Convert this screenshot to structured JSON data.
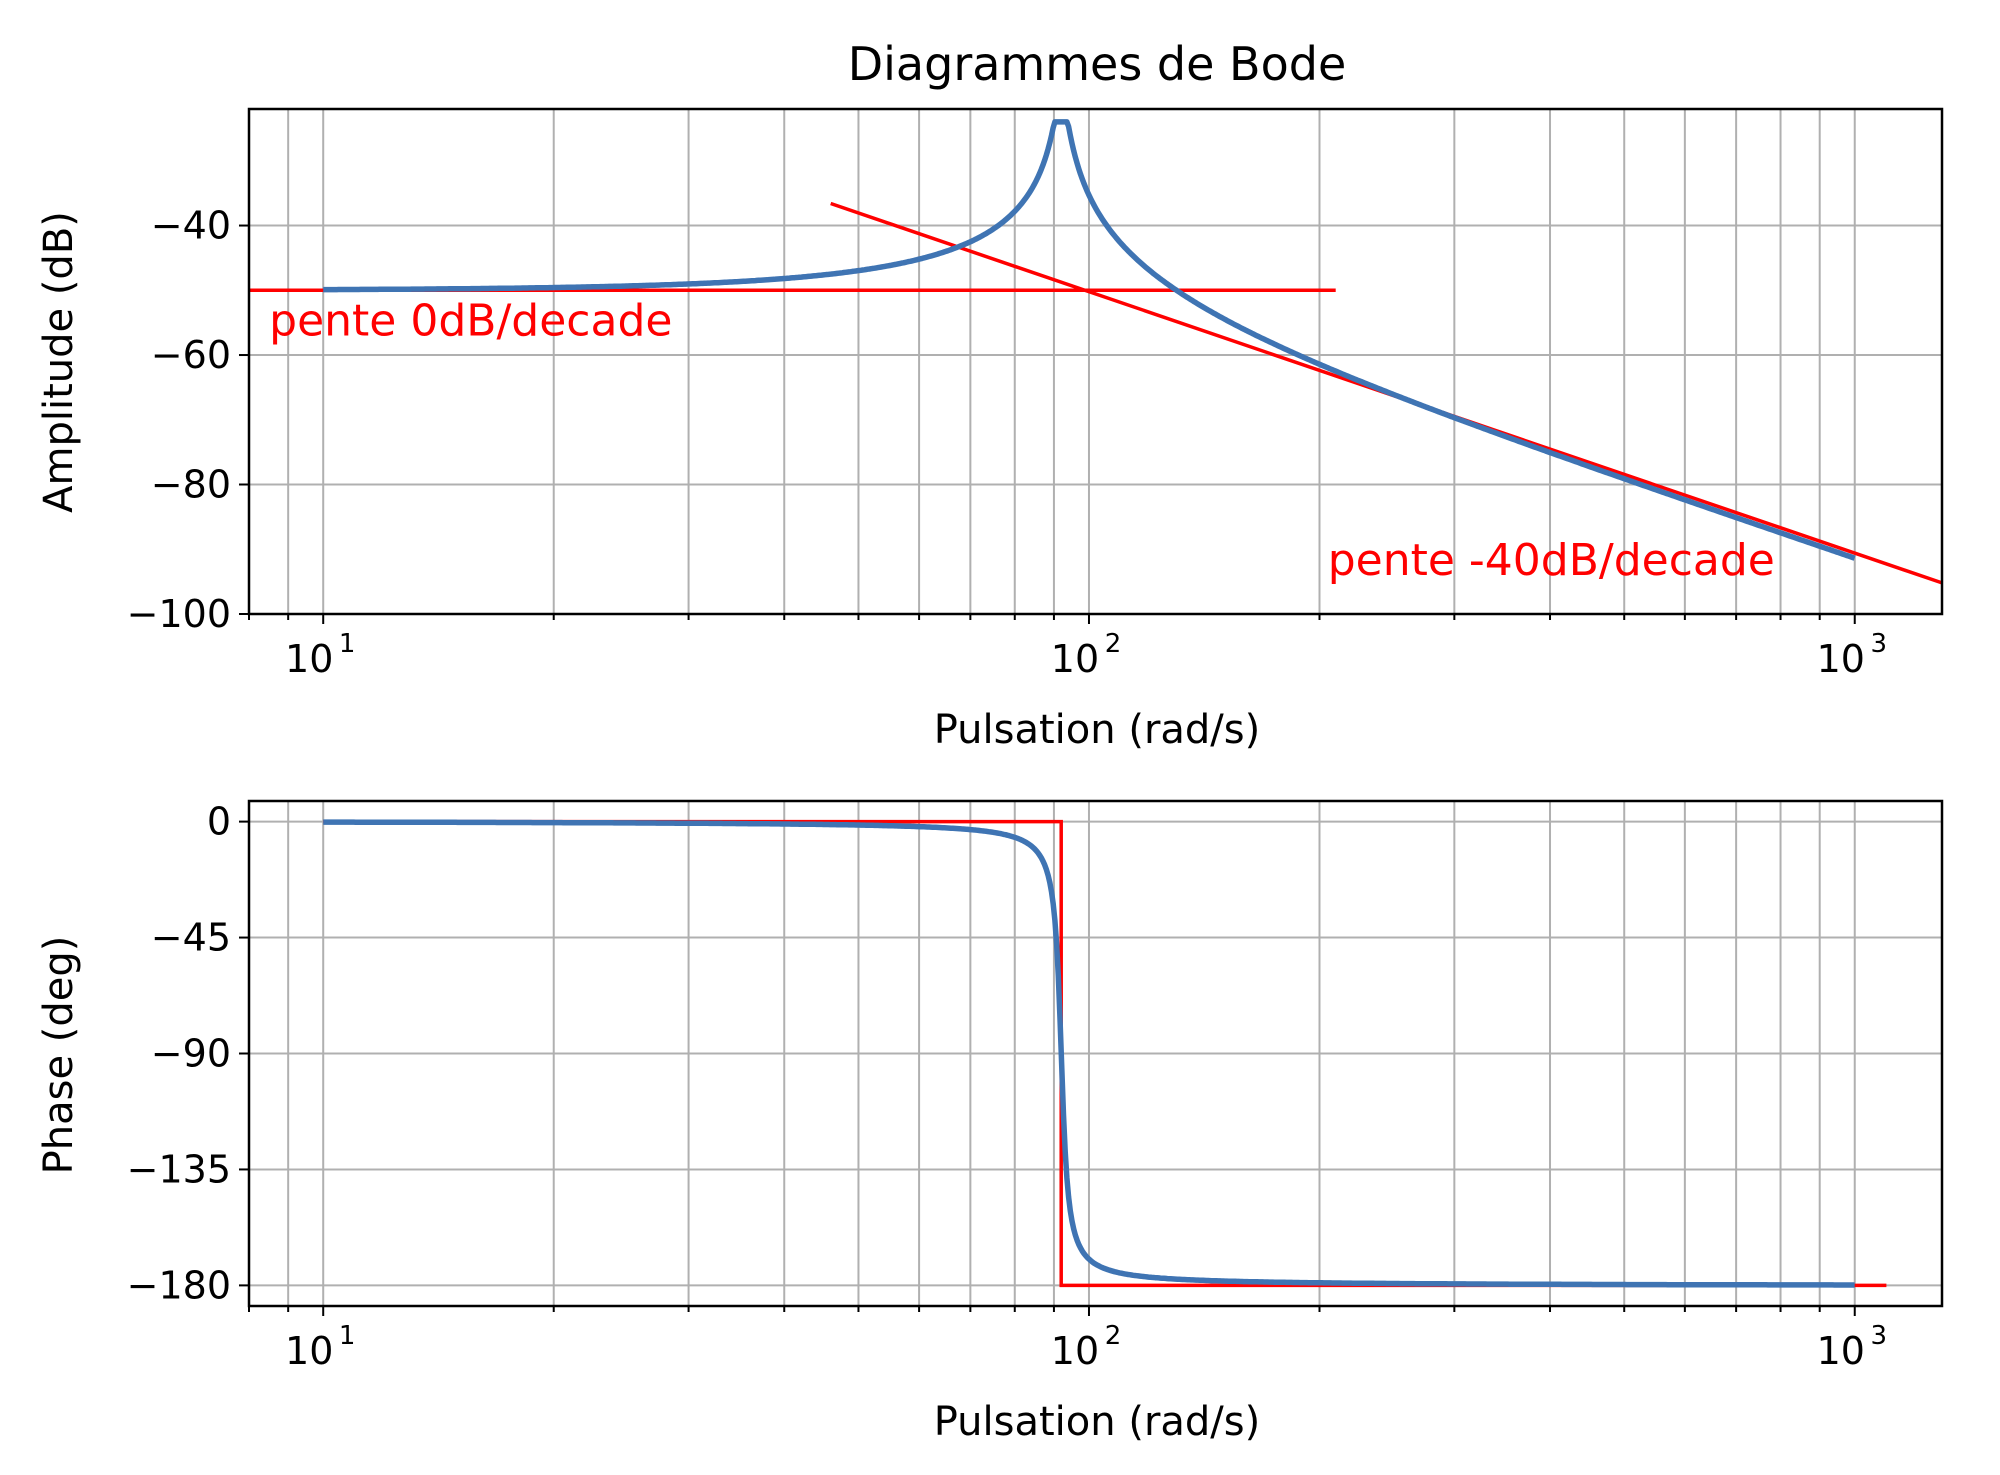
{
  "chart_data": [
    {
      "type": "line",
      "title": "Diagrammes de Bode",
      "xlabel": "Pulsation (rad/s)",
      "ylabel": "Amplitude (dB)",
      "xscale": "log",
      "xlim": [
        8,
        1300
      ],
      "ylim": [
        -100,
        -22
      ],
      "xticks": [
        {
          "base": "10",
          "exp": "1",
          "value": 10
        },
        {
          "base": "10",
          "exp": "2",
          "value": 100
        },
        {
          "base": "10",
          "exp": "3",
          "value": 1000
        }
      ],
      "yticks": [
        {
          "label": "−40",
          "value": -40
        },
        {
          "label": "−60",
          "value": -60
        },
        {
          "label": "−80",
          "value": -80
        },
        {
          "label": "−100",
          "value": -100
        }
      ],
      "grid": true,
      "series": [
        {
          "color": "#3f74b3",
          "model": {
            "gain_db": -50,
            "omega_n": 92,
            "zeta": 0.015
          },
          "x_range": [
            10,
            1000
          ]
        }
      ],
      "asymptotes": [
        {
          "color": "#ff0000",
          "x": [
            8,
            210
          ],
          "y": [
            -50,
            -50
          ]
        },
        {
          "color": "#ff0000",
          "x": [
            46,
            1300
          ],
          "y": [
            -36.6,
            -95.2
          ]
        }
      ],
      "annotations": [
        {
          "text": "pente 0dB/decade",
          "x": 8.5,
          "y": -57,
          "color": "#ff0000"
        },
        {
          "text": "pente -40dB/decade",
          "x": 205,
          "y": -94,
          "color": "#ff0000"
        }
      ]
    },
    {
      "type": "line",
      "xlabel": "Pulsation (rad/s)",
      "ylabel": "Phase (deg)",
      "xscale": "log",
      "xlim": [
        8,
        1300
      ],
      "ylim": [
        -188,
        8
      ],
      "xticks": [
        {
          "base": "10",
          "exp": "1",
          "value": 10
        },
        {
          "base": "10",
          "exp": "2",
          "value": 100
        },
        {
          "base": "10",
          "exp": "3",
          "value": 1000
        }
      ],
      "yticks": [
        {
          "label": "0",
          "value": 0
        },
        {
          "label": "−45",
          "value": -45
        },
        {
          "label": "−90",
          "value": -90
        },
        {
          "label": "−135",
          "value": -135
        },
        {
          "label": "−180",
          "value": -180
        }
      ],
      "grid": true,
      "series": [
        {
          "color": "#3f74b3",
          "model": {
            "omega_n": 92,
            "zeta": 0.015
          },
          "x_range": [
            10,
            1000
          ]
        }
      ],
      "asymptotes": [
        {
          "color": "#ff0000",
          "x": [
            10,
            92,
            92,
            1100
          ],
          "y": [
            0,
            0,
            -180,
            -180
          ]
        }
      ]
    }
  ]
}
